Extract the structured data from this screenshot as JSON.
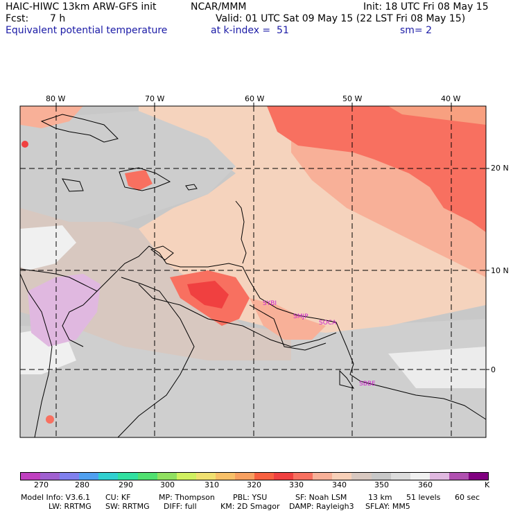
{
  "header": {
    "model": "HAIC-HIWC 13km ARW-GFS init",
    "org": "NCAR/MMM",
    "init": "Init: 18 UTC Fri 08 May 15",
    "fcst_label": "Fcst:",
    "fcst_value": "7 h",
    "valid": "Valid: 01 UTC Sat 09 May 15 (22 LST Fri 08 May 15)",
    "field": "Equivalent potential temperature",
    "level": "at k-index =  51",
    "smooth": "sm= 2"
  },
  "map": {
    "lon_labels": [
      "80 W",
      "70 W",
      "60 W",
      "50 W",
      "40 W"
    ],
    "lat_labels": [
      "20 N",
      "10 N",
      "0"
    ],
    "stations": [
      "SYBI",
      "SMJP",
      "SOCA",
      "SBBE"
    ],
    "colors": {
      "frame": "#000000",
      "grid": "#000000",
      "station": "#cc22cc"
    }
  },
  "colorbar": {
    "unit": "K",
    "ticks": [
      "270",
      "280",
      "290",
      "300",
      "310",
      "320",
      "330",
      "340",
      "350",
      "360"
    ],
    "colors": [
      "#c040c0",
      "#a060d0",
      "#8080ee",
      "#50a0f0",
      "#30d0d0",
      "#30e0a0",
      "#50e070",
      "#90e060",
      "#d0f060",
      "#f0e070",
      "#f8c068",
      "#f8a060",
      "#f86040",
      "#f04040",
      "#f87060",
      "#f8b098",
      "#f8d0b8",
      "#d8c8c0",
      "#c8c8c8",
      "#dcdcdc",
      "#f0f0f0",
      "#e0b8e0",
      "#b050b0",
      "#800080"
    ]
  },
  "footer": {
    "line1": [
      "Model Info: V3.6.1",
      "CU: KF",
      "MP: Thompson",
      "PBL: YSU",
      "SF: Noah LSM",
      "13 km",
      "51 levels",
      "60 sec"
    ],
    "line2": [
      "LW: RRTMG",
      "SW: RRTMG",
      "DIFF: full",
      "KM: 2D Smagor",
      "DAMP: Rayleigh3",
      "SFLAY: MM5"
    ]
  }
}
